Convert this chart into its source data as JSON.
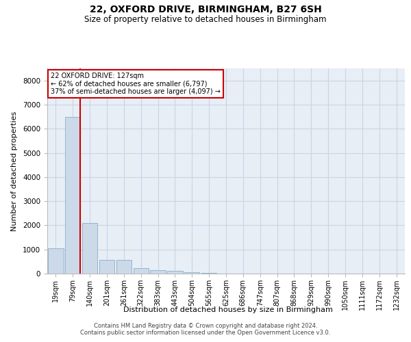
{
  "title": "22, OXFORD DRIVE, BIRMINGHAM, B27 6SH",
  "subtitle": "Size of property relative to detached houses in Birmingham",
  "xlabel": "Distribution of detached houses by size in Birmingham",
  "ylabel": "Number of detached properties",
  "property_label": "22 OXFORD DRIVE: 127sqm",
  "annotation_line1": "← 62% of detached houses are smaller (6,797)",
  "annotation_line2": "37% of semi-detached houses are larger (4,097) →",
  "footnote1": "Contains HM Land Registry data © Crown copyright and database right 2024.",
  "footnote2": "Contains public sector information licensed under the Open Government Licence v3.0.",
  "bar_color": "#ccd9e8",
  "bar_edge_color": "#8aaec8",
  "line_color": "#cc0000",
  "annotation_box_color": "#cc0000",
  "grid_color": "#c8d4e4",
  "bg_color": "#e8eef6",
  "categories": [
    "19sqm",
    "79sqm",
    "140sqm",
    "201sqm",
    "261sqm",
    "322sqm",
    "383sqm",
    "443sqm",
    "504sqm",
    "565sqm",
    "625sqm",
    "686sqm",
    "747sqm",
    "807sqm",
    "868sqm",
    "929sqm",
    "990sqm",
    "1050sqm",
    "1111sqm",
    "1172sqm",
    "1232sqm"
  ],
  "values": [
    1050,
    6500,
    2100,
    580,
    580,
    240,
    145,
    100,
    70,
    35,
    10,
    0,
    0,
    0,
    0,
    0,
    0,
    0,
    0,
    0,
    0
  ],
  "ylim": [
    0,
    8500
  ],
  "yticks": [
    0,
    1000,
    2000,
    3000,
    4000,
    5000,
    6000,
    7000,
    8000
  ],
  "property_bin_index": 1,
  "figsize": [
    6.0,
    5.0
  ],
  "dpi": 100
}
